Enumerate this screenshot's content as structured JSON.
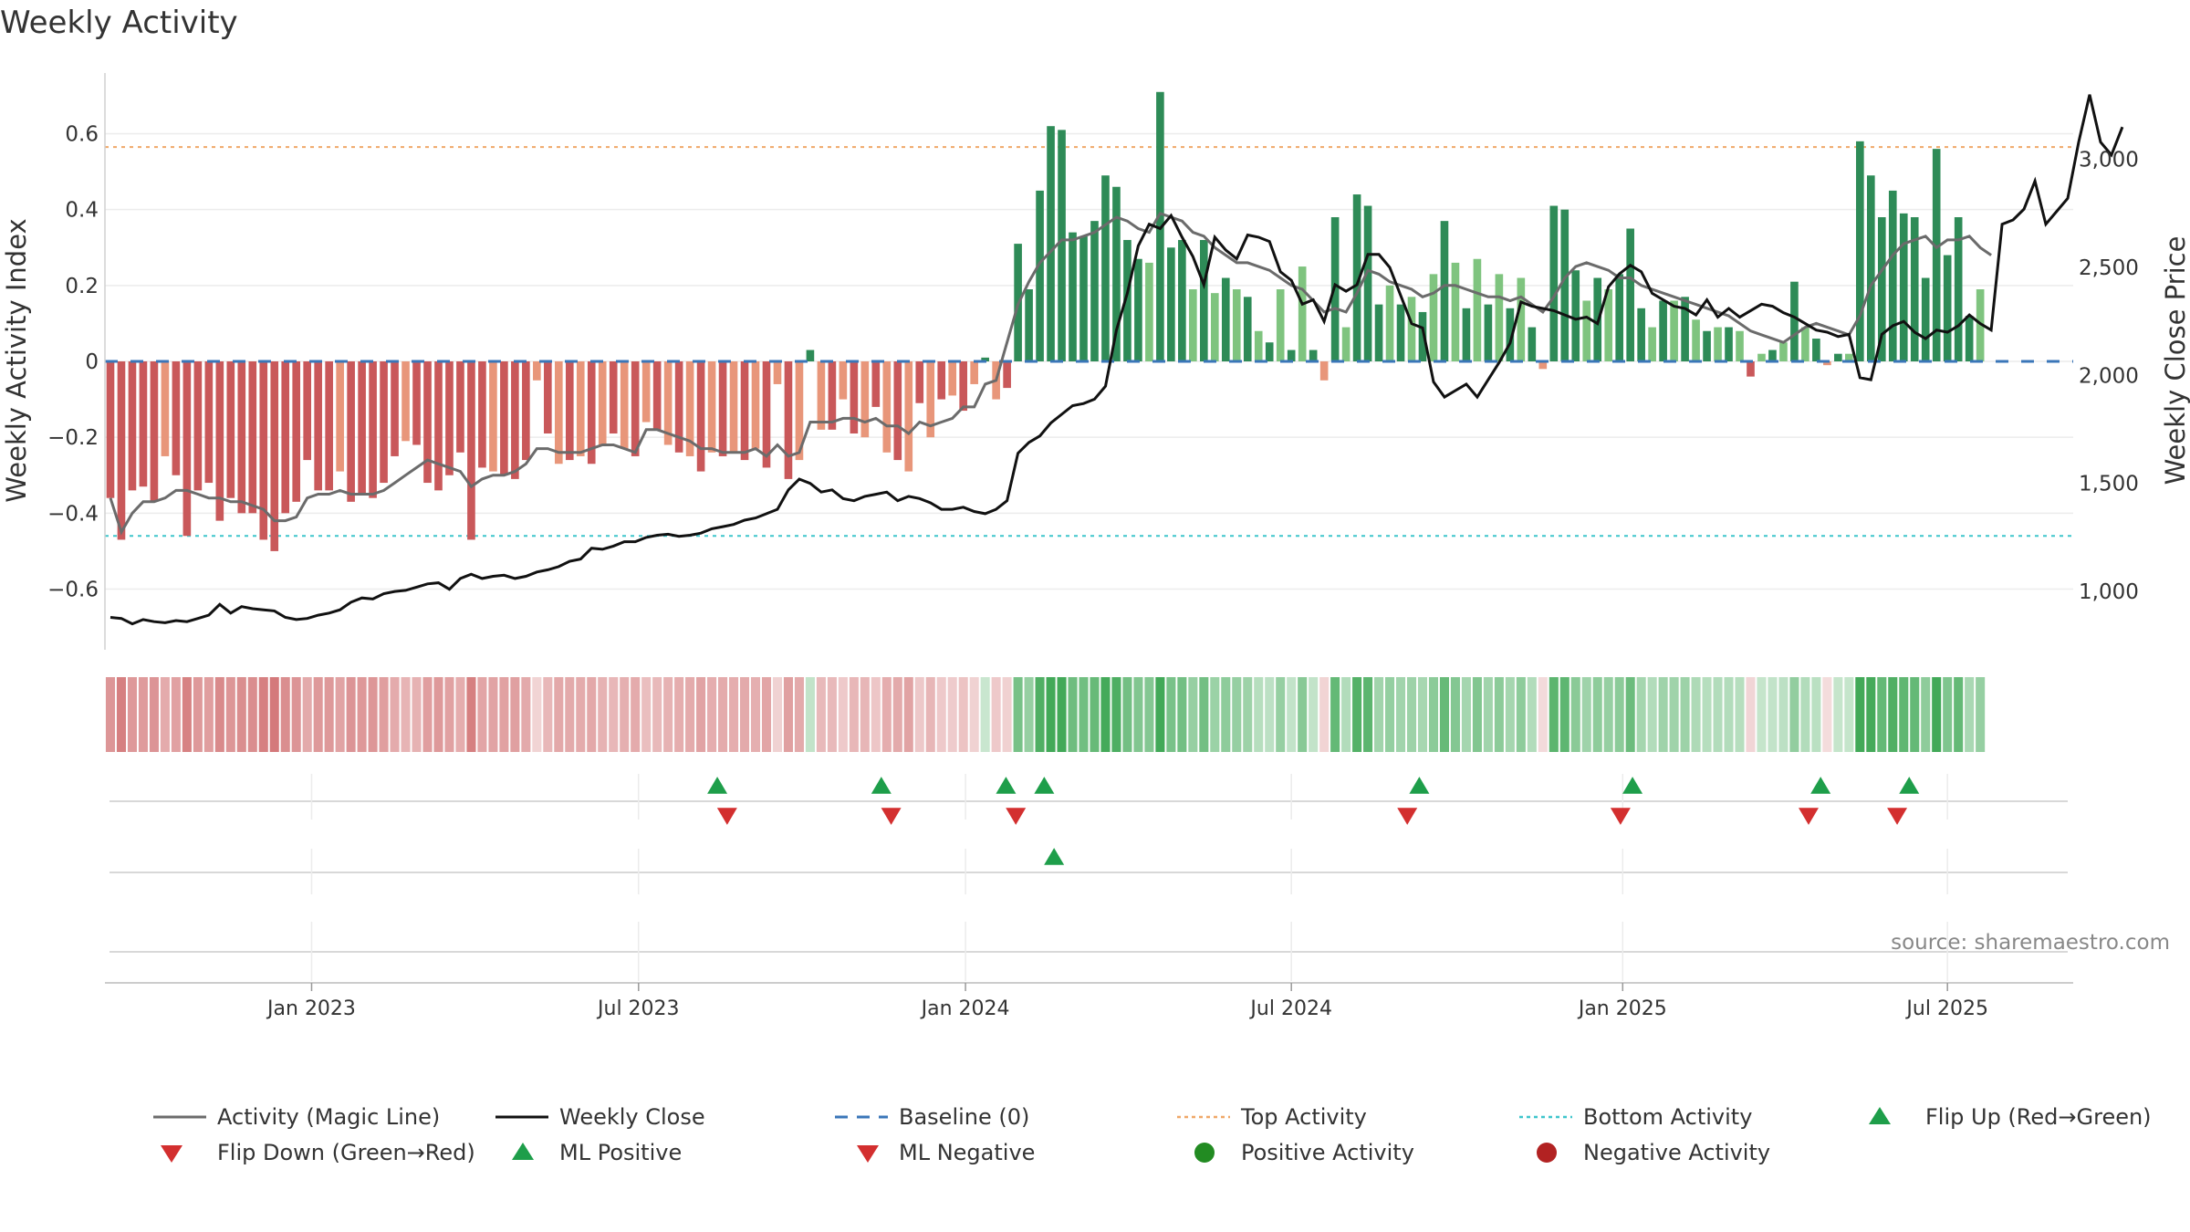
{
  "chart_data": {
    "type": "bar",
    "title": "Weekly Activity",
    "source": "source: sharemaestro.com",
    "ylabel_left": "Weekly Activity Index",
    "ylabel_right": "Weekly Close Price",
    "y_left_range": [
      -0.76,
      0.76
    ],
    "y_right_range": [
      730,
      3400
    ],
    "y_left_ticks": [
      {
        "v": 0.6,
        "label": "0.6"
      },
      {
        "v": 0.4,
        "label": "0.4"
      },
      {
        "v": 0.2,
        "label": "0.2"
      },
      {
        "v": 0,
        "label": "0"
      },
      {
        "v": -0.2,
        "label": "−0.2"
      },
      {
        "v": -0.4,
        "label": "−0.4"
      },
      {
        "v": -0.6,
        "label": "−0.6"
      }
    ],
    "y_right_ticks": [
      {
        "v": 3000,
        "label": "3,000"
      },
      {
        "v": 2500,
        "label": "2,500"
      },
      {
        "v": 2000,
        "label": "2,000"
      },
      {
        "v": 1500,
        "label": "1,500"
      },
      {
        "v": 1000,
        "label": "1,000"
      }
    ],
    "x_start_week": -0.5,
    "x_end_week": 179.5,
    "x_ticks": [
      {
        "week": 18.4,
        "label": "Jan 2023"
      },
      {
        "week": 48.3,
        "label": "Jul 2023"
      },
      {
        "week": 78.2,
        "label": "Jan 2024"
      },
      {
        "week": 108.0,
        "label": "Jul 2024"
      },
      {
        "week": 138.3,
        "label": "Jan 2025"
      },
      {
        "week": 168.0,
        "label": "Jul 2025"
      }
    ],
    "top_activity": 0.565,
    "bottom_activity": -0.46,
    "baseline": 0,
    "activity": [
      -0.36,
      -0.47,
      -0.34,
      -0.33,
      -0.37,
      -0.25,
      -0.3,
      -0.46,
      -0.34,
      -0.32,
      -0.42,
      -0.36,
      -0.4,
      -0.4,
      -0.47,
      -0.5,
      -0.4,
      -0.37,
      -0.26,
      -0.34,
      -0.34,
      -0.29,
      -0.37,
      -0.35,
      -0.36,
      -0.32,
      -0.25,
      -0.21,
      -0.22,
      -0.32,
      -0.34,
      -0.3,
      -0.24,
      -0.47,
      -0.28,
      -0.29,
      -0.3,
      -0.31,
      -0.26,
      -0.05,
      -0.19,
      -0.27,
      -0.26,
      -0.25,
      -0.27,
      -0.22,
      -0.19,
      -0.23,
      -0.25,
      -0.16,
      -0.18,
      -0.22,
      -0.24,
      -0.25,
      -0.29,
      -0.24,
      -0.25,
      -0.24,
      -0.26,
      -0.23,
      -0.28,
      -0.06,
      -0.31,
      -0.26,
      0.03,
      -0.18,
      -0.18,
      -0.1,
      -0.19,
      -0.2,
      -0.12,
      -0.24,
      -0.26,
      -0.29,
      -0.11,
      -0.2,
      -0.1,
      -0.09,
      -0.13,
      -0.06,
      0.01,
      -0.1,
      -0.07,
      0.31,
      0.19,
      0.45,
      0.62,
      0.61,
      0.34,
      0.33,
      0.37,
      0.49,
      0.46,
      0.32,
      0.27,
      0.26,
      0.71,
      0.3,
      0.32,
      0.19,
      0.32,
      0.18,
      0.22,
      0.19,
      0.17,
      0.08,
      0.05,
      0.19,
      0.03,
      0.25,
      0.03,
      -0.05,
      0.38,
      0.09,
      0.44,
      0.41,
      0.15,
      0.2,
      0.15,
      0.17,
      0.13,
      0.23,
      0.37,
      0.26,
      0.14,
      0.27,
      0.15,
      0.23,
      0.14,
      0.22,
      0.09,
      -0.02,
      0.41,
      0.4,
      0.24,
      0.16,
      0.22,
      0.19,
      0.23,
      0.35,
      0.14,
      0.09,
      0.16,
      0.16,
      0.17,
      0.11,
      0.08,
      0.09,
      0.09,
      0.08,
      -0.04,
      0.02,
      0.03,
      0.05,
      0.21,
      0.09,
      0.06,
      -0.01,
      0.02,
      0.02,
      0.58,
      0.49,
      0.38,
      0.45,
      0.39,
      0.38,
      0.22,
      0.56,
      0.28,
      0.38,
      0.12,
      0.19
    ],
    "magic_line": [
      -0.36,
      -0.45,
      -0.4,
      -0.37,
      -0.37,
      -0.36,
      -0.34,
      -0.34,
      -0.35,
      -0.36,
      -0.36,
      -0.37,
      -0.37,
      -0.38,
      -0.39,
      -0.42,
      -0.42,
      -0.41,
      -0.36,
      -0.35,
      -0.35,
      -0.34,
      -0.35,
      -0.35,
      -0.35,
      -0.34,
      -0.32,
      -0.3,
      -0.28,
      -0.26,
      -0.27,
      -0.28,
      -0.29,
      -0.33,
      -0.31,
      -0.3,
      -0.3,
      -0.29,
      -0.27,
      -0.23,
      -0.23,
      -0.24,
      -0.24,
      -0.24,
      -0.23,
      -0.22,
      -0.22,
      -0.23,
      -0.24,
      -0.18,
      -0.18,
      -0.19,
      -0.2,
      -0.21,
      -0.23,
      -0.23,
      -0.24,
      -0.24,
      -0.24,
      -0.23,
      -0.25,
      -0.22,
      -0.25,
      -0.24,
      -0.16,
      -0.16,
      -0.16,
      -0.15,
      -0.15,
      -0.16,
      -0.15,
      -0.17,
      -0.17,
      -0.19,
      -0.16,
      -0.17,
      -0.16,
      -0.15,
      -0.12,
      -0.12,
      -0.06,
      -0.05,
      0.05,
      0.15,
      0.21,
      0.26,
      0.29,
      0.32,
      0.32,
      0.33,
      0.34,
      0.36,
      0.38,
      0.37,
      0.35,
      0.34,
      0.39,
      0.38,
      0.37,
      0.34,
      0.33,
      0.3,
      0.28,
      0.26,
      0.26,
      0.25,
      0.24,
      0.22,
      0.2,
      0.19,
      0.16,
      0.13,
      0.14,
      0.13,
      0.18,
      0.24,
      0.23,
      0.21,
      0.2,
      0.19,
      0.17,
      0.18,
      0.2,
      0.2,
      0.19,
      0.18,
      0.17,
      0.17,
      0.16,
      0.17,
      0.15,
      0.13,
      0.17,
      0.22,
      0.25,
      0.26,
      0.25,
      0.24,
      0.22,
      0.22,
      0.2,
      0.19,
      0.18,
      0.17,
      0.16,
      0.15,
      0.14,
      0.13,
      0.12,
      0.1,
      0.08,
      0.07,
      0.06,
      0.05,
      0.07,
      0.09,
      0.1,
      0.09,
      0.08,
      0.07,
      0.12,
      0.2,
      0.24,
      0.28,
      0.31,
      0.32,
      0.33,
      0.3,
      0.32,
      0.32,
      0.33,
      0.3,
      0.28
    ],
    "weekly_close": [
      880,
      875,
      850,
      870,
      860,
      855,
      865,
      860,
      875,
      890,
      940,
      900,
      930,
      920,
      915,
      910,
      880,
      870,
      875,
      890,
      900,
      915,
      950,
      970,
      965,
      990,
      1000,
      1005,
      1020,
      1035,
      1040,
      1010,
      1060,
      1080,
      1060,
      1070,
      1075,
      1060,
      1070,
      1090,
      1100,
      1115,
      1140,
      1150,
      1200,
      1195,
      1210,
      1230,
      1230,
      1250,
      1260,
      1265,
      1255,
      1260,
      1270,
      1290,
      1300,
      1310,
      1330,
      1340,
      1360,
      1380,
      1470,
      1520,
      1500,
      1460,
      1470,
      1430,
      1420,
      1440,
      1450,
      1460,
      1420,
      1440,
      1430,
      1410,
      1380,
      1380,
      1390,
      1370,
      1360,
      1380,
      1420,
      1640,
      1690,
      1720,
      1780,
      1820,
      1860,
      1870,
      1890,
      1950,
      2210,
      2380,
      2600,
      2700,
      2680,
      2740,
      2640,
      2550,
      2420,
      2640,
      2580,
      2540,
      2650,
      2640,
      2620,
      2480,
      2440,
      2330,
      2350,
      2250,
      2420,
      2390,
      2420,
      2560,
      2560,
      2500,
      2370,
      2240,
      2220,
      1970,
      1900,
      1930,
      1960,
      1900,
      1980,
      2060,
      2150,
      2340,
      2320,
      2310,
      2300,
      2280,
      2260,
      2270,
      2240,
      2410,
      2470,
      2510,
      2480,
      2380,
      2350,
      2320,
      2310,
      2280,
      2350,
      2270,
      2310,
      2270,
      2300,
      2330,
      2320,
      2290,
      2270,
      2240,
      2210,
      2200,
      2180,
      2190,
      1990,
      1980,
      2190,
      2230,
      2250,
      2200,
      2170,
      2210,
      2200,
      2230,
      2280,
      2240,
      2210,
      2700,
      2720,
      2770,
      2900,
      2700,
      2760,
      2820,
      3080,
      3300,
      3080,
      3020,
      3150
    ],
    "activity_strip_note": "colour intensity follows activity value",
    "row1_markers": [
      {
        "week": 55.5,
        "shape": "up"
      },
      {
        "week": 56.4,
        "shape": "down"
      },
      {
        "week": 70.5,
        "shape": "up"
      },
      {
        "week": 71.4,
        "shape": "down"
      },
      {
        "week": 81.9,
        "shape": "up"
      },
      {
        "week": 82.8,
        "shape": "down"
      },
      {
        "week": 85.4,
        "shape": "up"
      },
      {
        "week": 119.7,
        "shape": "up"
      },
      {
        "week": 118.6,
        "shape": "down"
      },
      {
        "week": 139.2,
        "shape": "up"
      },
      {
        "week": 138.1,
        "shape": "down"
      },
      {
        "week": 156.4,
        "shape": "up"
      },
      {
        "week": 155.3,
        "shape": "down"
      },
      {
        "week": 164.5,
        "shape": "up"
      },
      {
        "week": 163.4,
        "shape": "down"
      }
    ],
    "row2_markers": [
      {
        "week": 86.3,
        "shape": "up"
      }
    ],
    "legend": [
      {
        "key": "magic",
        "label": "Activity (Magic Line)"
      },
      {
        "key": "close",
        "label": "Weekly Close"
      },
      {
        "key": "baseline",
        "label": "Baseline (0)"
      },
      {
        "key": "top",
        "label": "Top Activity"
      },
      {
        "key": "bottom",
        "label": "Bottom Activity"
      },
      {
        "key": "flipup",
        "label": "Flip Up (Red→Green)"
      },
      {
        "key": "flipdown",
        "label": "Flip Down (Green→Red)"
      },
      {
        "key": "mlpos",
        "label": "ML Positive"
      },
      {
        "key": "mlneg",
        "label": "ML Negative"
      },
      {
        "key": "pos",
        "label": "Positive Activity"
      },
      {
        "key": "neg",
        "label": "Negative Activity"
      }
    ],
    "colors": {
      "pos_dark": "#2e8b57",
      "pos_light": "#7fc47f",
      "neg_dark": "#c9585a",
      "neg_light": "#e8967a",
      "magic": "#6b6b6b",
      "close": "#111111",
      "baseline": "#3a76b8",
      "top": "#f0a868",
      "bottom": "#3ec6cc",
      "marker_up": "#1e9e4a",
      "marker_down": "#d32f2f",
      "legend_pos": "#228b22",
      "legend_neg": "#b22222"
    }
  }
}
